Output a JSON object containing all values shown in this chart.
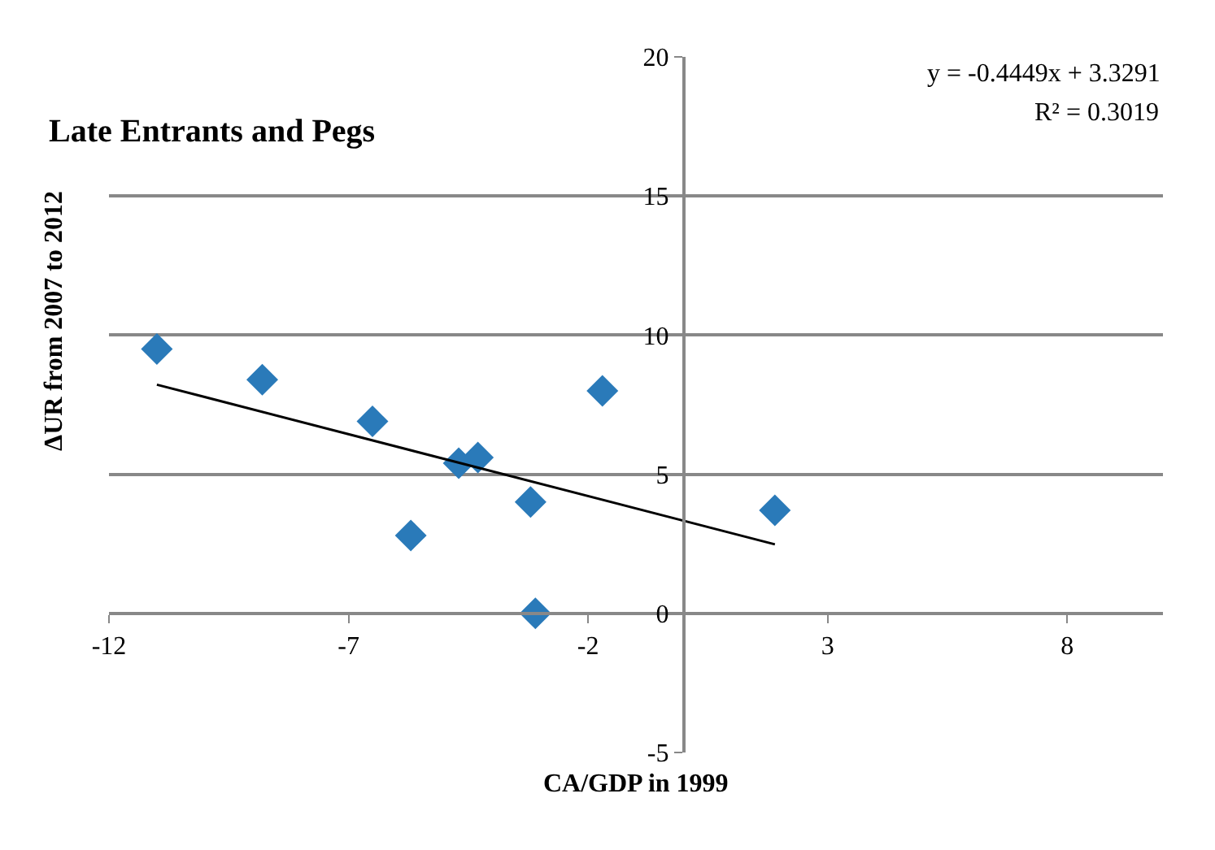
{
  "chart_data": {
    "type": "scatter",
    "title": "Late Entrants and Pegs",
    "xlabel": "CA/GDP in 1999",
    "ylabel": "ΔUR from 2007 to 2012",
    "annotations": [
      "y = -0.4449x + 3.3291",
      "R² = 0.3019"
    ],
    "x": [
      -11,
      -8.8,
      -6.5,
      -5.7,
      -4.7,
      -4.3,
      -3.2,
      -3.1,
      -1.7,
      1.9
    ],
    "series": [
      {
        "color": "#2a7ab9",
        "values": [
          9.5,
          8.4,
          6.9,
          2.8,
          5.4,
          5.6,
          4.0,
          0.0,
          8.0,
          3.7
        ],
        "marker": "diamond"
      },
      {
        "type": "line",
        "color": "#000000",
        "x": [
          -11,
          1.9
        ],
        "values": [
          8.22,
          2.48
        ],
        "marker": "none"
      }
    ],
    "xlim": [
      -12,
      10
    ],
    "xticks": [
      -12,
      -7,
      -2,
      3,
      8
    ],
    "ylim": [
      -5,
      20
    ],
    "yticks": [
      -5,
      0,
      5,
      10,
      15,
      20
    ],
    "grid": "y"
  }
}
